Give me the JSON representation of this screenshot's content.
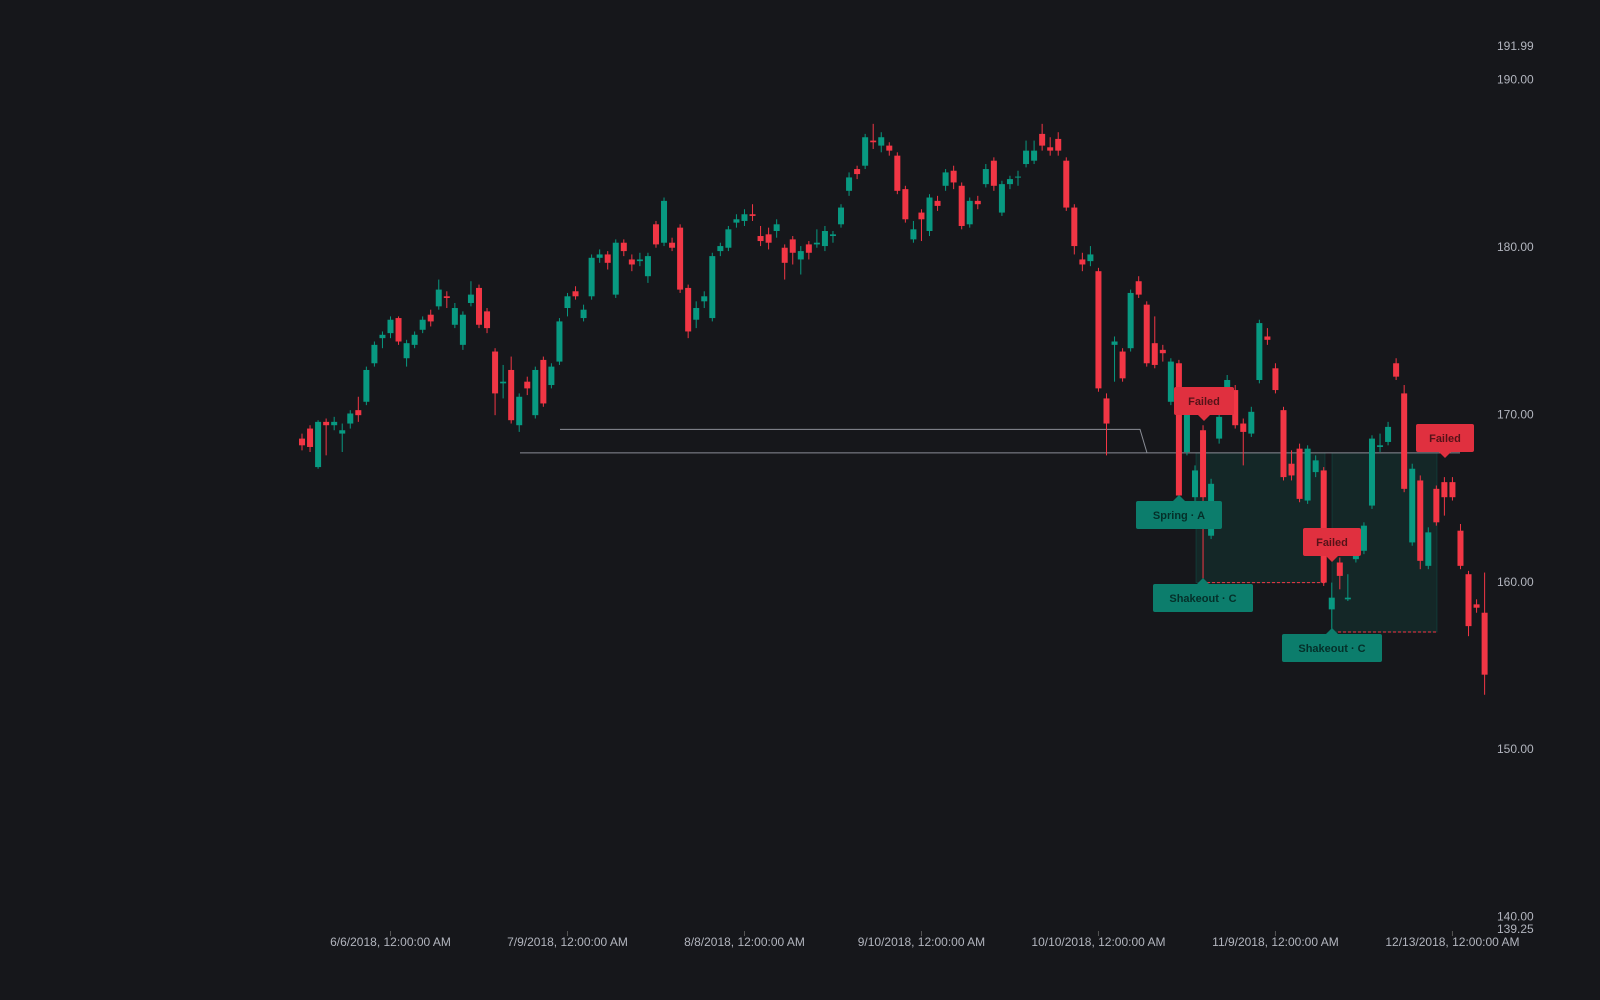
{
  "chart_data": {
    "type": "candlestick",
    "categories": [
      null,
      null,
      null,
      null,
      null,
      null,
      null,
      null,
      null,
      null,
      null,
      "6/6/2018, 12:00:00 AM",
      null,
      null,
      null,
      null,
      null,
      null,
      null,
      null,
      null,
      null,
      null,
      null,
      null,
      null,
      null,
      null,
      null,
      null,
      null,
      null,
      null,
      "7/9/2018, 12:00:00 AM",
      null,
      null,
      null,
      null,
      null,
      null,
      null,
      null,
      null,
      null,
      null,
      null,
      null,
      null,
      null,
      null,
      null,
      null,
      null,
      null,
      null,
      "8/8/2018, 12:00:00 AM",
      null,
      null,
      null,
      null,
      null,
      null,
      null,
      null,
      null,
      null,
      null,
      null,
      null,
      null,
      null,
      null,
      null,
      null,
      null,
      null,
      null,
      "9/10/2018, 12:00:00 AM",
      null,
      null,
      null,
      null,
      null,
      null,
      null,
      null,
      null,
      null,
      null,
      null,
      null,
      null,
      null,
      null,
      null,
      null,
      null,
      null,
      null,
      "10/10/2018, 12:00:00 AM",
      null,
      null,
      null,
      null,
      null,
      null,
      null,
      null,
      null,
      null,
      null,
      null,
      null,
      null,
      null,
      null,
      null,
      null,
      null,
      null,
      null,
      "11/9/2018, 12:00:00 AM",
      null,
      null,
      null,
      null,
      null,
      null,
      null,
      null,
      null,
      null,
      null,
      null,
      null,
      null,
      null,
      null,
      null,
      null,
      null,
      null,
      null,
      "12/13/2018, 12:00:00 AM",
      null,
      null,
      null,
      null
    ],
    "open": [
      168.6,
      169.2,
      166.9,
      169.6,
      169.4,
      168.9,
      169.5,
      170.3,
      170.8,
      173.1,
      174.6,
      174.9,
      175.8,
      173.4,
      174.2,
      175.1,
      176.0,
      176.5,
      177.1,
      175.4,
      174.2,
      176.7,
      177.6,
      176.2,
      173.8,
      171.9,
      172.7,
      169.4,
      172.0,
      170.0,
      173.3,
      171.8,
      173.2,
      176.4,
      177.4,
      175.8,
      177.1,
      179.4,
      179.6,
      177.2,
      180.3,
      179.3,
      179.2,
      178.3,
      181.4,
      180.3,
      180.3,
      181.2,
      177.6,
      175.7,
      176.8,
      175.8,
      179.8,
      180.0,
      181.5,
      181.6,
      182.0,
      180.7,
      180.8,
      181.0,
      180.0,
      180.5,
      179.3,
      180.2,
      180.2,
      180.1,
      180.7,
      181.4,
      183.4,
      184.7,
      184.9,
      186.4,
      186.1,
      186.1,
      185.5,
      183.5,
      180.5,
      182.1,
      181.0,
      182.8,
      183.7,
      184.6,
      183.7,
      181.4,
      182.8,
      183.8,
      185.2,
      182.1,
      183.8,
      184.2,
      185.0,
      185.2,
      186.8,
      186.0,
      186.5,
      185.2,
      182.4,
      179.3,
      179.2,
      178.6,
      171.0,
      174.2,
      173.8,
      174.0,
      178.0,
      176.6,
      174.3,
      173.9,
      170.8,
      173.1,
      167.8,
      165.1,
      169.1,
      162.8,
      168.6,
      170.4,
      171.5,
      169.5,
      168.9,
      172.1,
      174.7,
      172.8,
      170.3,
      167.1,
      168.0,
      164.9,
      166.6,
      166.7,
      158.4,
      161.2,
      159.0,
      161.4,
      161.9,
      164.6,
      168.1,
      168.4,
      173.1,
      171.3,
      162.4,
      166.1,
      161.0,
      165.6,
      166.0,
      166.0,
      163.1,
      160.5,
      158.7,
      158.2
    ],
    "high": [
      168.9,
      169.4,
      169.7,
      169.8,
      169.9,
      169.5,
      170.3,
      171.1,
      172.9,
      174.4,
      175.0,
      175.9,
      175.9,
      174.5,
      175.0,
      175.9,
      176.3,
      178.1,
      177.4,
      176.7,
      176.2,
      178.0,
      177.8,
      176.4,
      174.0,
      173.0,
      173.5,
      171.3,
      172.3,
      172.9,
      173.5,
      173.1,
      175.8,
      177.3,
      177.7,
      176.6,
      179.6,
      179.9,
      179.8,
      180.5,
      180.5,
      179.6,
      179.7,
      179.7,
      181.6,
      183.0,
      180.6,
      181.4,
      177.8,
      176.8,
      177.4,
      179.7,
      180.3,
      181.3,
      182.0,
      182.3,
      182.6,
      181.3,
      181.2,
      181.7,
      180.2,
      180.7,
      180.1,
      180.4,
      181.1,
      181.3,
      181.0,
      182.6,
      184.5,
      184.9,
      186.8,
      187.4,
      186.9,
      186.3,
      185.7,
      183.7,
      181.6,
      182.3,
      183.2,
      183.1,
      184.7,
      184.9,
      183.9,
      183.0,
      183.1,
      185.0,
      185.4,
      184.0,
      184.3,
      184.6,
      186.4,
      186.4,
      187.4,
      186.6,
      186.9,
      185.4,
      182.6,
      179.7,
      180.1,
      178.8,
      171.3,
      174.7,
      174.0,
      177.5,
      178.3,
      176.8,
      175.9,
      174.2,
      173.4,
      173.3,
      170.8,
      167.0,
      169.4,
      166.2,
      170.2,
      172.4,
      171.8,
      169.8,
      170.5,
      175.7,
      175.2,
      173.1,
      170.5,
      167.9,
      168.3,
      168.2,
      167.6,
      166.9,
      160.0,
      161.5,
      160.5,
      162.6,
      163.6,
      168.8,
      168.9,
      169.6,
      173.4,
      171.8,
      167.1,
      166.4,
      163.3,
      165.8,
      166.3,
      166.3,
      163.5,
      160.7,
      159.0,
      160.6
    ],
    "low": [
      167.9,
      167.8,
      166.8,
      167.6,
      169.1,
      167.8,
      169.2,
      169.6,
      170.6,
      172.9,
      174.0,
      174.6,
      174.2,
      172.9,
      174.0,
      174.9,
      175.3,
      176.3,
      176.4,
      175.2,
      173.9,
      176.5,
      175.2,
      174.9,
      170.0,
      171.0,
      169.5,
      169.0,
      171.2,
      169.8,
      170.5,
      171.6,
      173.0,
      175.9,
      176.9,
      175.6,
      176.9,
      179.1,
      178.7,
      177.0,
      179.5,
      178.6,
      178.9,
      177.9,
      180.0,
      180.1,
      179.8,
      177.3,
      174.6,
      175.2,
      176.4,
      175.6,
      179.5,
      179.8,
      181.2,
      181.3,
      181.6,
      180.1,
      179.9,
      180.6,
      178.1,
      179.0,
      178.4,
      179.3,
      180.0,
      179.8,
      180.3,
      181.2,
      183.1,
      184.1,
      184.7,
      185.9,
      185.7,
      185.5,
      183.2,
      181.5,
      180.3,
      180.4,
      180.7,
      182.2,
      183.4,
      183.5,
      181.1,
      181.2,
      182.3,
      183.6,
      183.4,
      181.9,
      183.5,
      183.7,
      184.8,
      185.0,
      185.8,
      185.5,
      185.5,
      182.2,
      179.6,
      178.6,
      178.9,
      171.4,
      167.6,
      172.0,
      172.0,
      173.8,
      177.0,
      172.9,
      172.8,
      173.2,
      170.6,
      165.0,
      167.6,
      164.6,
      160.0,
      162.6,
      168.3,
      170.2,
      169.2,
      167.0,
      168.7,
      171.9,
      174.2,
      171.3,
      166.1,
      166.1,
      164.8,
      164.7,
      166.3,
      159.8,
      157.2,
      159.6,
      158.9,
      161.2,
      161.7,
      164.4,
      167.8,
      168.2,
      172.1,
      165.4,
      162.2,
      160.8,
      160.8,
      163.4,
      164.0,
      164.9,
      160.8,
      156.8,
      158.2,
      153.3
    ],
    "close": [
      168.2,
      168.1,
      169.6,
      169.4,
      169.6,
      169.1,
      170.1,
      170.0,
      172.7,
      174.2,
      174.8,
      175.7,
      174.4,
      174.3,
      174.8,
      175.7,
      175.6,
      177.5,
      177.0,
      176.4,
      176.0,
      177.2,
      175.4,
      175.2,
      171.3,
      172.0,
      169.7,
      171.1,
      171.6,
      172.7,
      170.7,
      172.9,
      175.6,
      177.1,
      177.1,
      176.3,
      179.4,
      179.6,
      179.1,
      180.3,
      179.8,
      179.0,
      179.3,
      179.5,
      180.2,
      182.8,
      180.0,
      177.5,
      175.0,
      176.4,
      177.1,
      179.5,
      180.1,
      181.1,
      181.7,
      182.0,
      181.9,
      180.4,
      180.3,
      181.4,
      179.1,
      179.7,
      179.8,
      179.7,
      180.3,
      181.0,
      180.8,
      182.4,
      184.2,
      184.4,
      186.6,
      186.3,
      186.6,
      185.8,
      183.4,
      181.7,
      181.1,
      181.7,
      183.0,
      182.5,
      184.5,
      183.9,
      181.3,
      182.8,
      182.6,
      184.7,
      183.7,
      183.8,
      184.1,
      184.25,
      185.8,
      185.8,
      186.1,
      185.8,
      185.8,
      182.4,
      180.1,
      179.0,
      179.6,
      171.6,
      169.5,
      174.4,
      172.2,
      177.3,
      177.2,
      173.1,
      173.0,
      173.7,
      173.2,
      165.2,
      170.2,
      166.7,
      165.1,
      165.9,
      169.9,
      172.1,
      169.4,
      169.0,
      170.2,
      175.5,
      174.5,
      171.5,
      166.3,
      166.4,
      165.0,
      168.0,
      167.3,
      160.0,
      159.1,
      160.4,
      159.1,
      162.3,
      163.4,
      168.6,
      168.2,
      169.3,
      172.3,
      165.6,
      166.8,
      161.3,
      163.0,
      163.6,
      165.1,
      165.1,
      161.0,
      157.4,
      158.5,
      154.5
    ],
    "up_color": "#089981",
    "down_color": "#f23645",
    "ylim": [
      139.25,
      191.99
    ],
    "yticks": [
      {
        "value": 139.25,
        "label": "139.25"
      },
      {
        "value": 140,
        "label": "140.00"
      },
      {
        "value": 150,
        "label": "150.00"
      },
      {
        "value": 160,
        "label": "160.00"
      },
      {
        "value": 170,
        "label": "170.00"
      },
      {
        "value": 180,
        "label": "180.00"
      },
      {
        "value": 190,
        "label": "190.00"
      },
      {
        "value": 191.99,
        "label": "191.99"
      }
    ],
    "levels": [
      169.15,
      167.75
    ],
    "ranges": [
      {
        "top": 167.75,
        "bottom": 160.0
      },
      {
        "top": 167.75,
        "bottom": 157.05
      }
    ],
    "annotations": [
      {
        "text": "Failed",
        "color": "#e0303f"
      },
      {
        "text": "Spring · A",
        "color": "#0c7d6c"
      },
      {
        "text": "Shakeout · C",
        "color": "#0c7d6c"
      },
      {
        "text": "Failed",
        "color": "#e0303f"
      },
      {
        "text": "Shakeout · C",
        "color": "#0c7d6c"
      },
      {
        "text": "Failed",
        "color": "#e0303f"
      }
    ]
  }
}
